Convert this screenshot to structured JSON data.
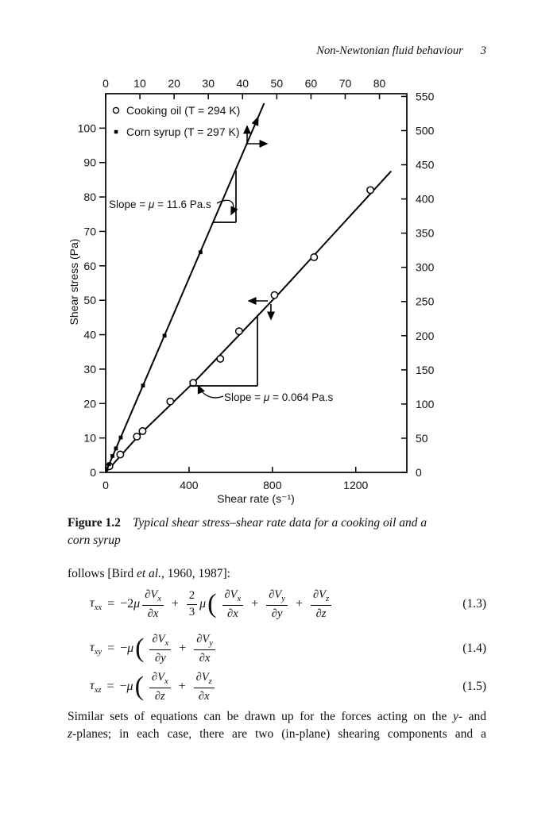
{
  "header": {
    "running_title": "Non-Newtonian fluid behaviour",
    "page_number": "3"
  },
  "chart_data": {
    "type": "scatter",
    "title": "",
    "grid": false,
    "legend_position": "top-left-inside",
    "axes": {
      "bottom": {
        "label": "Shear rate (s⁻¹)",
        "min": 0,
        "max": 1445,
        "ticks": [
          0,
          400,
          800,
          1200
        ]
      },
      "top": {
        "min": 0,
        "max": 88,
        "ticks": [
          0,
          10,
          20,
          30,
          40,
          50,
          60,
          70,
          80
        ]
      },
      "left": {
        "label": "Shear stress (Pa)",
        "min": 0,
        "max": 110,
        "ticks": [
          0,
          10,
          20,
          30,
          40,
          50,
          60,
          70,
          80,
          90,
          100
        ]
      },
      "right": {
        "min": 0,
        "max": 554,
        "ticks": [
          0,
          50,
          100,
          150,
          200,
          250,
          300,
          350,
          400,
          450,
          500,
          550
        ]
      }
    },
    "series": [
      {
        "name": "Cooking oil (T = 294 K)",
        "slug": "cooking-oil",
        "marker": "circle",
        "x_axis": "bottom",
        "y_axis": "left",
        "points": [
          [
            18,
            1.8
          ],
          [
            70,
            5.2
          ],
          [
            150,
            10.4
          ],
          [
            177,
            12
          ],
          [
            310,
            20.6
          ],
          [
            420,
            26
          ],
          [
            550,
            33
          ],
          [
            640,
            41
          ],
          [
            810,
            51.5
          ],
          [
            1000,
            62.5
          ],
          [
            1270,
            82
          ]
        ],
        "line": [
          [
            0,
            0
          ],
          [
            160,
            10.8
          ],
          [
            430,
            26.6
          ],
          [
            840,
            52.5
          ],
          [
            1370,
            87.5
          ]
        ],
        "slope_annotation": "Slope = μ = 0.064 Pa.s",
        "slope_value_pa_s": 0.064
      },
      {
        "name": "Corn syrup (T = 297 K)",
        "slug": "corn-syrup",
        "marker": "square",
        "x_axis": "top",
        "y_axis": "right",
        "points": [
          [
            1,
            12
          ],
          [
            2,
            24
          ],
          [
            3,
            35
          ],
          [
            4.4,
            51
          ],
          [
            10.9,
            127
          ],
          [
            17.2,
            200
          ],
          [
            27.7,
            322
          ]
        ],
        "line": [
          [
            0,
            0
          ],
          [
            46.3,
            540
          ]
        ],
        "slope_annotation": "Slope = μ = 11.6 Pa.s",
        "slope_value_pa_s": 11.6
      }
    ]
  },
  "caption": {
    "label": "Figure 1.2",
    "lines": [
      "Typical shear stress–shear rate data for a cooking oil and a",
      "corn syrup"
    ]
  },
  "intro_paragraph": [
    {
      "t": "follows [Bird "
    },
    {
      "t": "et al.",
      "it": true
    },
    {
      "t": ", 1960, 1987]:"
    }
  ],
  "equations": [
    {
      "number": "(1.3)",
      "tokens": [
        [
          "s",
          "τ",
          "xx"
        ],
        [
          "o",
          "="
        ],
        [
          "r",
          "−2"
        ],
        [
          "s",
          "μ",
          ""
        ],
        [
          "f",
          "V",
          "x",
          "x"
        ],
        [
          "o",
          "+"
        ],
        [
          "q",
          "2",
          "3"
        ],
        [
          "s",
          "μ",
          ""
        ],
        [
          "p",
          "("
        ],
        [
          "f",
          "V",
          "x",
          "x"
        ],
        [
          "o",
          "+"
        ],
        [
          "f",
          "V",
          "y",
          "y"
        ],
        [
          "o",
          "+"
        ],
        [
          "f",
          "V",
          "z",
          "z"
        ]
      ]
    },
    {
      "number": "(1.4)",
      "tokens": [
        [
          "s",
          "τ",
          "xy"
        ],
        [
          "o",
          "="
        ],
        [
          "r",
          "−"
        ],
        [
          "s",
          "μ",
          ""
        ],
        [
          "p",
          "("
        ],
        [
          "f",
          "V",
          "x",
          "y"
        ],
        [
          "o",
          "+"
        ],
        [
          "f",
          "V",
          "y",
          "x"
        ]
      ]
    },
    {
      "number": "(1.5)",
      "tokens": [
        [
          "s",
          "τ",
          "xz"
        ],
        [
          "o",
          "="
        ],
        [
          "r",
          "−"
        ],
        [
          "s",
          "μ",
          ""
        ],
        [
          "p",
          "("
        ],
        [
          "f",
          "V",
          "x",
          "z"
        ],
        [
          "o",
          "+"
        ],
        [
          "f",
          "V",
          "z",
          "x"
        ]
      ]
    }
  ],
  "closing_paragraph": {
    "lines": [
      [
        {
          "t": "Similar sets of equations can be drawn up for the forces acting on the "
        },
        {
          "t": "y",
          "it": true
        },
        {
          "t": "- and"
        }
      ],
      [
        {
          "t": "z",
          "it": true
        },
        {
          "t": "-planes; in each case, there are two (in-plane) shearing components and a"
        }
      ]
    ]
  }
}
